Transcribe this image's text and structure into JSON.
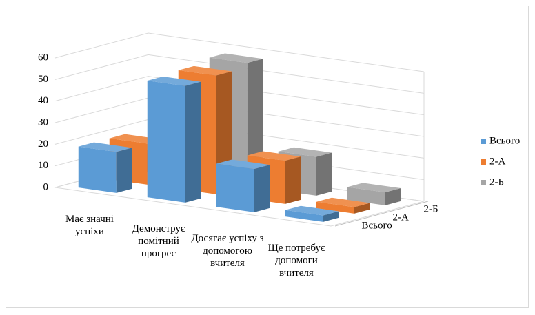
{
  "chart_data": {
    "type": "bar3d",
    "categories": [
      "Має значні успіхи",
      "Демонструє помітний прогрес",
      "Досягає успіху з допомогою вчителя",
      "Ще потребує допомоги вчителя"
    ],
    "series": [
      {
        "name": "Всього",
        "color": "#5b9bd5",
        "values": [
          19,
          54,
          20,
          3
        ]
      },
      {
        "name": "2-А",
        "color": "#ed7d31",
        "values": [
          19,
          55,
          20,
          3
        ]
      },
      {
        "name": "2-Б",
        "color": "#a5a5a5",
        "values": [
          9,
          57,
          18,
          6
        ]
      }
    ],
    "ylim": [
      0,
      60
    ],
    "yticks": [
      0,
      10,
      20,
      30,
      40,
      50,
      60
    ],
    "grid": true,
    "legend": "right"
  }
}
